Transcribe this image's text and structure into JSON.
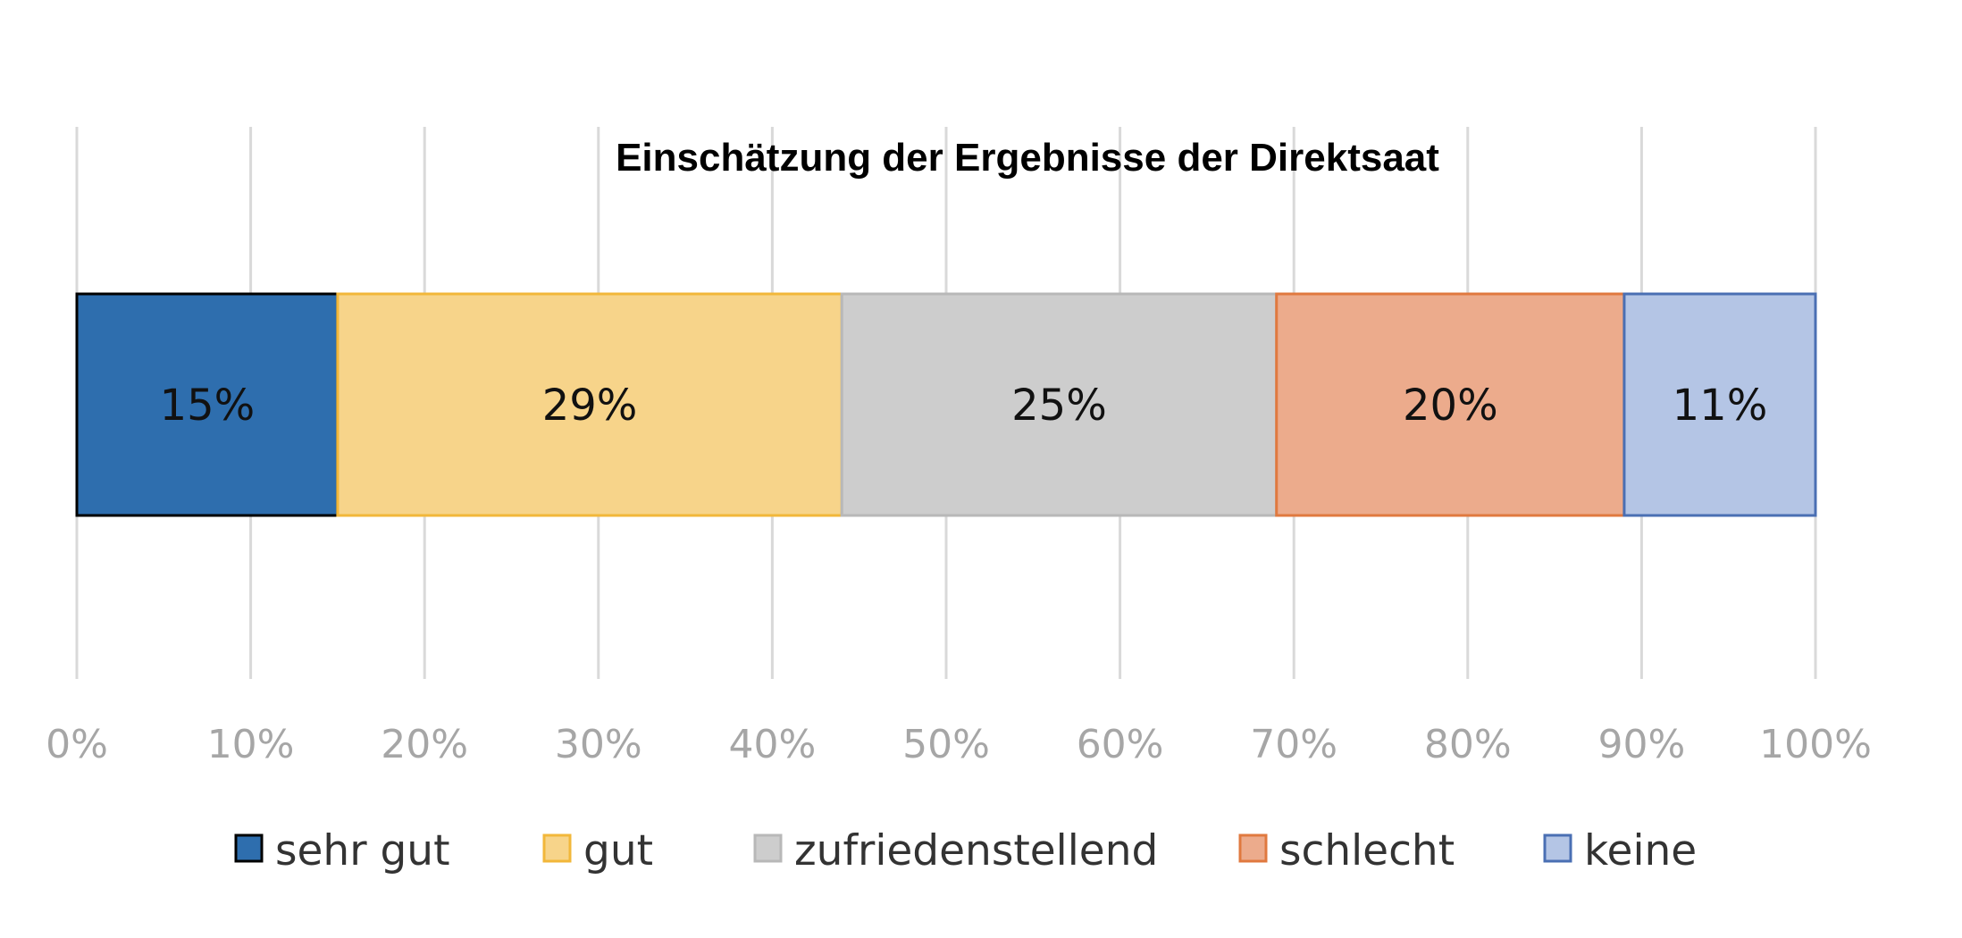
{
  "chart_data": {
    "type": "bar",
    "orientation": "horizontal",
    "stacked": true,
    "title": "Einschätzung der Ergebnisse der Direktsaat",
    "categories": [
      ""
    ],
    "xlim": [
      0,
      100
    ],
    "x_ticks": [
      "0%",
      "10%",
      "20%",
      "30%",
      "40%",
      "50%",
      "60%",
      "70%",
      "80%",
      "90%",
      "100%"
    ],
    "grid": "vertical",
    "legend_position": "bottom",
    "series": [
      {
        "name": "sehr gut",
        "values": [
          15
        ],
        "label": "15%",
        "fill": "#2e6eae",
        "stroke": "#000000"
      },
      {
        "name": "gut",
        "values": [
          29
        ],
        "label": "29%",
        "fill": "#f7d48a",
        "stroke": "#f2b73a"
      },
      {
        "name": "zufriedenstellend",
        "values": [
          25
        ],
        "label": "25%",
        "fill": "#cdcdcd",
        "stroke": "#b8b8b8"
      },
      {
        "name": "schlecht",
        "values": [
          20
        ],
        "label": "20%",
        "fill": "#ecab8c",
        "stroke": "#e0793f"
      },
      {
        "name": "keine",
        "values": [
          11
        ],
        "label": "11%",
        "fill": "#b4c5e5",
        "stroke": "#4a6fb3"
      }
    ]
  }
}
